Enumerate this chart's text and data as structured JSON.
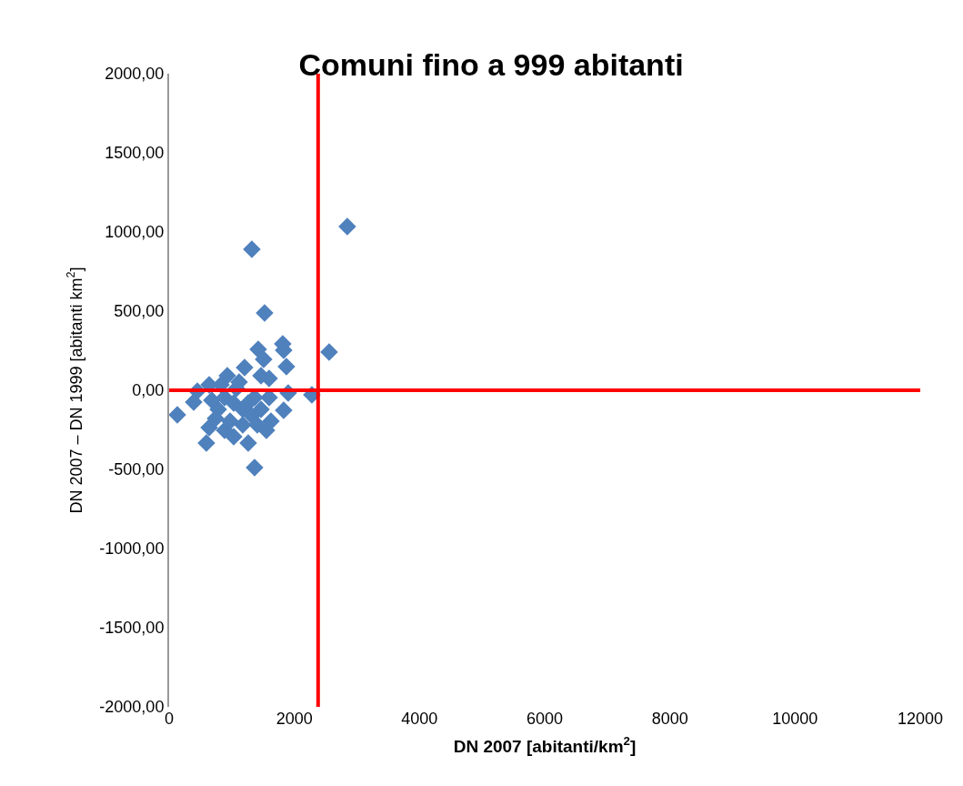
{
  "chart_data": {
    "type": "scatter",
    "title": "Comuni fino a 999 abitanti",
    "xlabel": "DN 2007 [abitanti/km$^{2}$]",
    "ylabel": "DN 2007 – DN 1999 [abitanti km$^{2}$]",
    "x": [
      1321,
      1525,
      2846,
      1423,
      1510,
      1815,
      1830,
      1873,
      1205,
      1467,
      1597,
      2556,
      1902,
      2280,
      1830,
      131,
      392,
      450,
      595,
      1263,
      1365,
      1031,
      639,
      1554,
      1626,
      1597,
      929,
      1118,
      639,
      784,
      886,
      1031,
      1176,
      1321,
      973,
      1176,
      741,
      1408,
      886,
      1467,
      682,
      828,
      1075,
      1365,
      1263
    ],
    "values": [
      891,
      488,
      1034,
      259,
      195,
      293,
      253,
      149,
      144,
      92,
      75,
      241,
      -17,
      -29,
      -126,
      -155,
      -75,
      -6,
      -333,
      -333,
      -488,
      -293,
      -236,
      -253,
      -195,
      -46,
      92,
      52,
      34,
      -121,
      -46,
      -80,
      -121,
      -161,
      -195,
      -218,
      -178,
      -218,
      -253,
      -121,
      -63,
      34,
      11,
      -46,
      -80
    ],
    "color": "#4f81bd",
    "marker": "diamond",
    "xlim": [
      0,
      12000
    ],
    "xticks": [
      0,
      2000,
      4000,
      6000,
      8000,
      10000,
      12000
    ],
    "ylim": [
      -2000,
      2000
    ],
    "yticks": [
      {
        "value": -2000,
        "label": "-2000,00"
      },
      {
        "value": -1500,
        "label": "-1500,00"
      },
      {
        "value": -1000,
        "label": "-1000,00"
      },
      {
        "value": -500,
        "label": "-500,00"
      },
      {
        "value": 0,
        "label": "0,00"
      },
      {
        "value": 500,
        "label": "500,00"
      },
      {
        "value": 1000,
        "label": "1000,00"
      },
      {
        "value": 1500,
        "label": "1500,00"
      },
      {
        "value": 2000,
        "label": "2000,00"
      }
    ],
    "ref_lines": [
      {
        "axis": "y",
        "value": 0,
        "color": "#ff0000"
      },
      {
        "axis": "x",
        "value": 2380,
        "color": "#ff0000"
      }
    ]
  }
}
